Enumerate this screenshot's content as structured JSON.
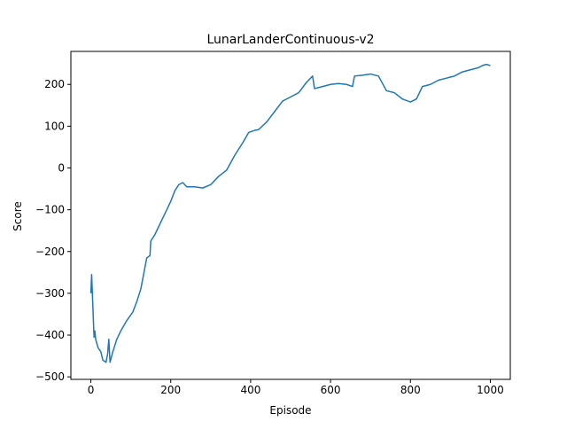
{
  "chart_data": {
    "type": "line",
    "title": "LunarLanderContinuous-v2",
    "x_label": "Episode",
    "y_label": "Score",
    "x": [
      0,
      2,
      5,
      8,
      10,
      12,
      18,
      25,
      30,
      38,
      42,
      45,
      48,
      55,
      65,
      75,
      90,
      105,
      115,
      125,
      135,
      140,
      148,
      150,
      160,
      170,
      180,
      190,
      200,
      210,
      220,
      230,
      240,
      260,
      280,
      300,
      320,
      340,
      360,
      380,
      395,
      410,
      420,
      440,
      460,
      480,
      500,
      520,
      540,
      555,
      560,
      580,
      600,
      620,
      640,
      655,
      660,
      680,
      700,
      720,
      740,
      760,
      780,
      800,
      815,
      820,
      830,
      850,
      870,
      890,
      910,
      930,
      950,
      970,
      980,
      990,
      1000
    ],
    "series": [
      {
        "name": "Score",
        "color": "#1f77b4",
        "values": [
          -300,
          -255,
          -330,
          -405,
          -390,
          -410,
          -430,
          -440,
          -460,
          -465,
          -445,
          -410,
          -465,
          -440,
          -410,
          -390,
          -365,
          -345,
          -320,
          -290,
          -240,
          -215,
          -210,
          -175,
          -160,
          -140,
          -120,
          -100,
          -80,
          -55,
          -40,
          -35,
          -45,
          -45,
          -48,
          -40,
          -20,
          -5,
          30,
          60,
          85,
          90,
          92,
          110,
          135,
          160,
          170,
          180,
          205,
          220,
          190,
          195,
          200,
          202,
          200,
          195,
          220,
          222,
          225,
          220,
          185,
          180,
          165,
          158,
          165,
          175,
          195,
          200,
          210,
          215,
          220,
          230,
          235,
          240,
          245,
          248,
          245
        ]
      }
    ],
    "xlim": [
      -50,
      1050
    ],
    "xticks": [
      0,
      200,
      400,
      600,
      800,
      1000
    ],
    "ylim": [
      -506,
      279
    ],
    "yticks": [
      {
        "value": -500,
        "label": "−500"
      },
      {
        "value": -400,
        "label": "−400"
      },
      {
        "value": -300,
        "label": "−300"
      },
      {
        "value": -200,
        "label": "−200"
      },
      {
        "value": -100,
        "label": "−100"
      },
      0,
      100,
      200
    ]
  }
}
